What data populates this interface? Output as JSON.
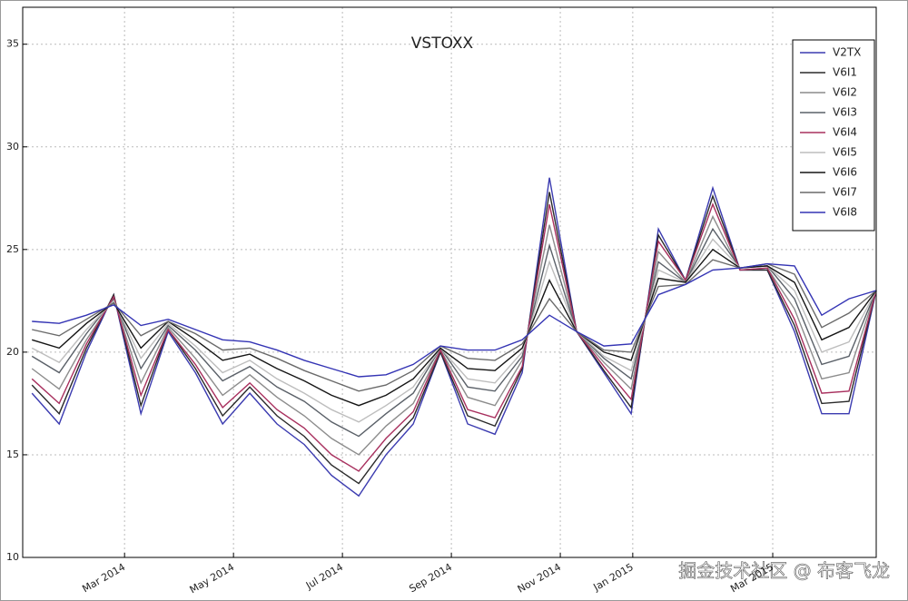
{
  "chart_data": {
    "type": "line",
    "title": "VSTOXX",
    "x": [
      0.3,
      0.8,
      1.3,
      1.8,
      2.3,
      2.8,
      3.3,
      3.8,
      4.3,
      4.8,
      5.3,
      5.8,
      6.3,
      6.8,
      7.3,
      7.8,
      8.3,
      8.8,
      9.3,
      9.8,
      10.3,
      10.8,
      11.3,
      11.8,
      12.3,
      12.8,
      13.3,
      13.8,
      14.3,
      14.8,
      15.3,
      15.8
    ],
    "xlim": [
      0.13,
      15.8
    ],
    "xticks": [
      {
        "value": 2,
        "label": "Mar 2014"
      },
      {
        "value": 4,
        "label": "May 2014"
      },
      {
        "value": 6,
        "label": "Jul 2014"
      },
      {
        "value": 8,
        "label": "Sep 2014"
      },
      {
        "value": 10,
        "label": "Nov 2014"
      },
      {
        "value": 11.33,
        "label": "Jan 2015"
      },
      {
        "value": 13.9,
        "label": "Mar 2015"
      }
    ],
    "ylim": [
      10,
      36.8
    ],
    "yticks": [
      10,
      15,
      20,
      25,
      30,
      35
    ],
    "grid": true,
    "legend": "upper right",
    "series": [
      {
        "name": "V2TX",
        "color": "#3b3bb0",
        "values": [
          18,
          16.5,
          20,
          22.8,
          17,
          21,
          19,
          16.5,
          18,
          16.5,
          15.5,
          14,
          13,
          15,
          16.5,
          20,
          16.5,
          16,
          19,
          28.5,
          21,
          19,
          17,
          26,
          23.5,
          28,
          24,
          24,
          21,
          17,
          17,
          23
        ]
      },
      {
        "name": "V6I1",
        "color": "#2a2a2a",
        "values": [
          18.4,
          17.0,
          20.2,
          22.8,
          17.4,
          21.1,
          19.2,
          16.9,
          18.3,
          16.9,
          15.9,
          14.5,
          13.6,
          15.4,
          16.8,
          20.0,
          16.9,
          16.4,
          19.2,
          27.8,
          21,
          19.1,
          17.3,
          25.7,
          23.5,
          27.6,
          24.0,
          24.0,
          21.3,
          17.5,
          17.6,
          23
        ]
      },
      {
        "name": "V6I2",
        "color": "#8c8c8c",
        "values": [
          19.2,
          18.2,
          20.6,
          22.6,
          18.5,
          21.2,
          19.7,
          17.9,
          18.9,
          17.8,
          16.9,
          15.8,
          15.0,
          16.4,
          17.5,
          20.1,
          17.8,
          17.4,
          19.6,
          26.2,
          21,
          19.5,
          18.2,
          24.9,
          23.4,
          26.6,
          24.0,
          24.1,
          22.1,
          18.7,
          19.0,
          23
        ]
      },
      {
        "name": "V6I3",
        "color": "#5a6068",
        "values": [
          19.8,
          19.0,
          20.9,
          22.6,
          19.2,
          21.3,
          20.1,
          18.6,
          19.3,
          18.3,
          17.6,
          16.6,
          15.9,
          17.0,
          18.0,
          20.2,
          18.3,
          18.1,
          19.8,
          25.2,
          21,
          19.7,
          18.7,
          24.4,
          23.4,
          26.0,
          24.1,
          24.2,
          22.6,
          19.4,
          19.8,
          23
        ]
      },
      {
        "name": "V6I4",
        "color": "#a8305e",
        "values": [
          18.7,
          17.5,
          20.4,
          22.7,
          17.9,
          21.1,
          19.4,
          17.3,
          18.5,
          17.2,
          16.3,
          15.0,
          14.2,
          15.8,
          17.1,
          20.1,
          17.2,
          16.8,
          19.3,
          27.2,
          21,
          19.3,
          17.7,
          25.4,
          23.5,
          27.2,
          24.0,
          24.1,
          21.6,
          18.0,
          18.1,
          23
        ]
      },
      {
        "name": "V6I5",
        "color": "#bdbdbd",
        "values": [
          20.2,
          19.5,
          21.1,
          22.5,
          19.7,
          21.4,
          20.3,
          19.0,
          19.6,
          18.7,
          18.0,
          17.2,
          16.6,
          17.4,
          18.3,
          20.2,
          18.7,
          18.5,
          20.0,
          24.4,
          21,
          19.8,
          19.1,
          24.0,
          23.4,
          25.5,
          24.1,
          24.2,
          23.0,
          20.0,
          20.5,
          23
        ]
      },
      {
        "name": "V6I6",
        "color": "#151515",
        "values": [
          20.6,
          20.2,
          21.4,
          22.4,
          20.2,
          21.5,
          20.6,
          19.6,
          19.9,
          19.2,
          18.6,
          17.9,
          17.4,
          17.9,
          18.7,
          20.2,
          19.2,
          19.1,
          20.2,
          23.5,
          21,
          20.0,
          19.6,
          23.6,
          23.4,
          25.0,
          24.1,
          24.2,
          23.4,
          20.6,
          21.2,
          23
        ]
      },
      {
        "name": "V6I7",
        "color": "#6a6a6a",
        "values": [
          21.1,
          20.8,
          21.6,
          22.4,
          20.8,
          21.5,
          20.9,
          20.1,
          20.2,
          19.7,
          19.1,
          18.6,
          18.1,
          18.4,
          19.1,
          20.3,
          19.7,
          19.6,
          20.4,
          22.6,
          21,
          20.1,
          20.0,
          23.2,
          23.3,
          24.5,
          24.1,
          24.3,
          23.8,
          21.2,
          21.9,
          23
        ]
      },
      {
        "name": "V6I8",
        "color": "#3434b4",
        "values": [
          21.5,
          21.4,
          21.8,
          22.3,
          21.3,
          21.6,
          21.1,
          20.6,
          20.5,
          20.1,
          19.6,
          19.2,
          18.8,
          18.9,
          19.4,
          20.3,
          20.1,
          20.1,
          20.6,
          21.8,
          21,
          20.3,
          20.4,
          22.8,
          23.3,
          24,
          24.1,
          24.3,
          24.2,
          21.8,
          22.6,
          23
        ]
      }
    ]
  },
  "watermark": "掘金技术社区 @ 布客飞龙"
}
